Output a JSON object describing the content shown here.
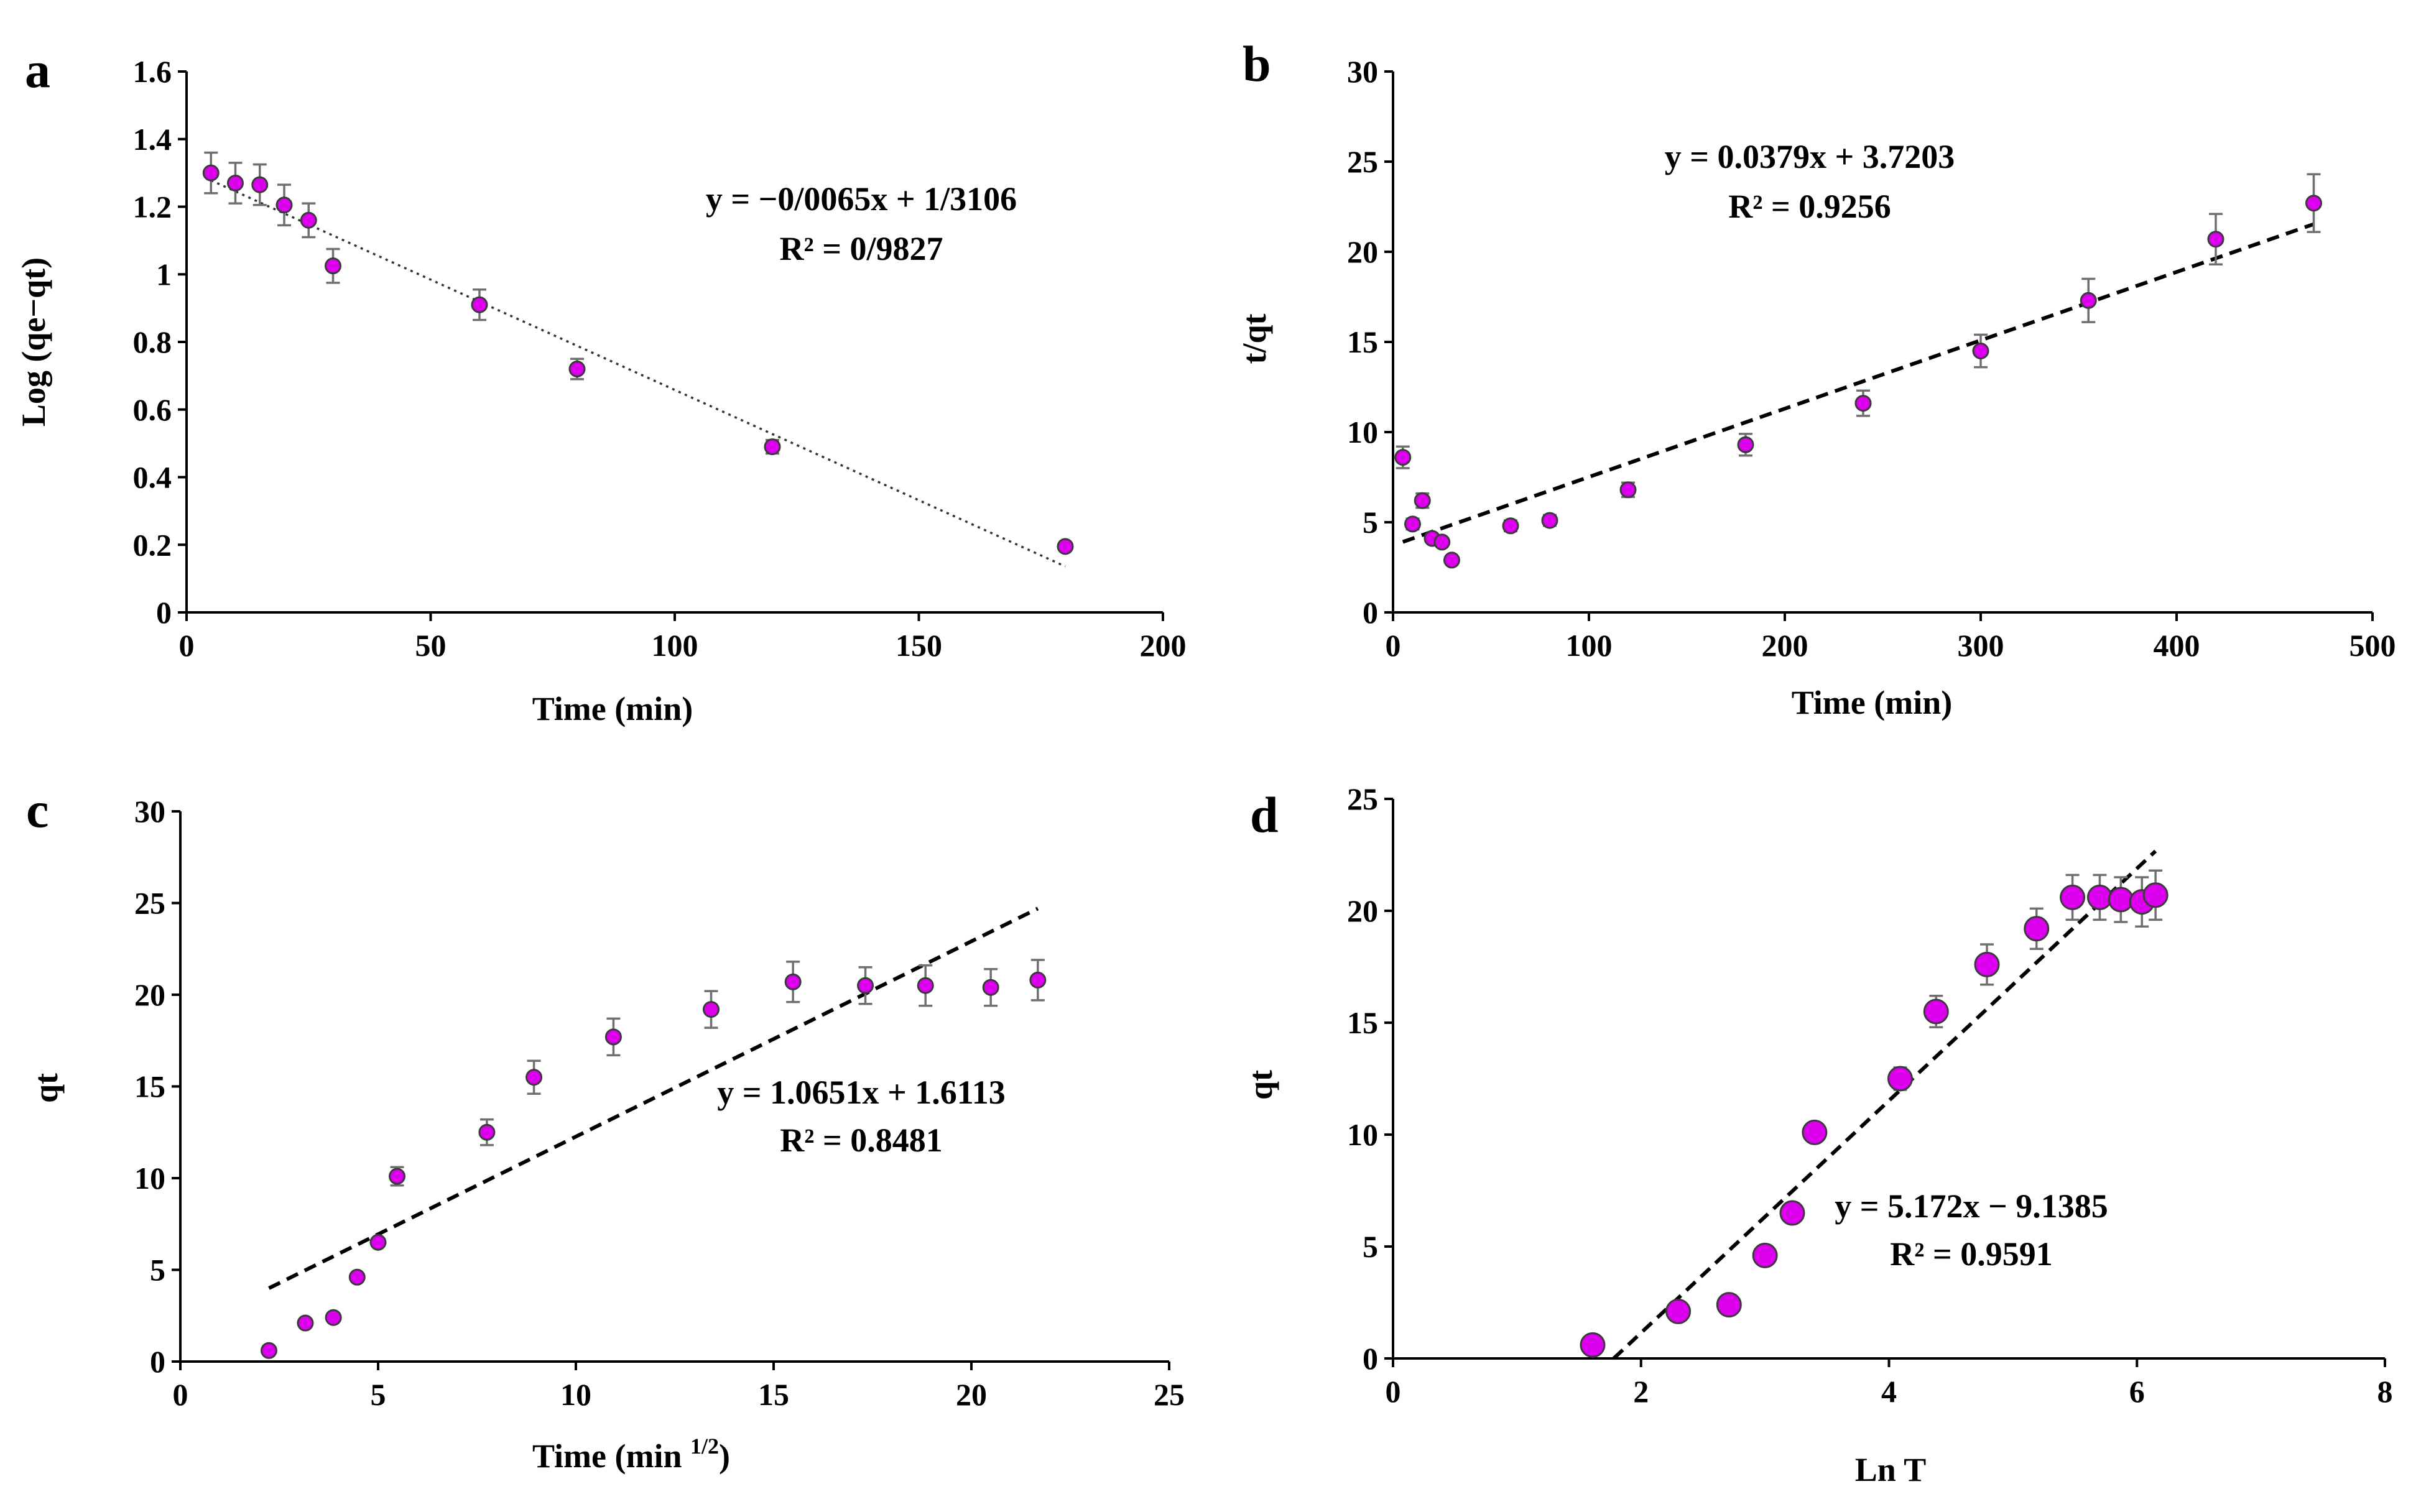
{
  "chart_data": [
    {
      "id": "a",
      "panel_label": "a",
      "type": "scatter",
      "xlabel": "Time (min)",
      "ylabel": "Log (qe−qt)",
      "xlim": [
        0,
        200
      ],
      "ylim": [
        0,
        1.6
      ],
      "xticks": [
        0,
        50,
        100,
        150,
        200
      ],
      "yticks": [
        0,
        0.2,
        0.4,
        0.6,
        0.8,
        1,
        1.2,
        1.4,
        1.6
      ],
      "xtick_labels": [
        "0",
        "50",
        "100",
        "150",
        "200"
      ],
      "ytick_labels": [
        "0",
        "0.2",
        "0.4",
        "0.6",
        "0.8",
        "1",
        "1.2",
        "1.4",
        "1.6"
      ],
      "series": [
        {
          "name": "data",
          "x": [
            5,
            10,
            15,
            20,
            25,
            30,
            60,
            80,
            120,
            180
          ],
          "y": [
            1.3,
            1.27,
            1.265,
            1.205,
            1.16,
            1.025,
            0.91,
            0.72,
            0.49,
            0.195
          ],
          "err": [
            0.06,
            0.06,
            0.06,
            0.06,
            0.05,
            0.05,
            0.045,
            0.03,
            0.02,
            0.01
          ]
        }
      ],
      "trendline": {
        "x1": 5,
        "y1": 1.278,
        "x2": 180,
        "y2": 0.136,
        "style": "dotted"
      },
      "equation": "y = −0/0065x + 1/3106",
      "r_squared": "R² = 0/9827",
      "point_size": "small"
    },
    {
      "id": "b",
      "panel_label": "b",
      "type": "scatter",
      "xlabel": "Time (min)",
      "ylabel": "t/qt",
      "xlim": [
        0,
        500
      ],
      "ylim": [
        0,
        30
      ],
      "xticks": [
        0,
        100,
        200,
        300,
        400,
        500
      ],
      "yticks": [
        0,
        5,
        10,
        15,
        20,
        25,
        30
      ],
      "xtick_labels": [
        "0",
        "100",
        "200",
        "300",
        "400",
        "500"
      ],
      "ytick_labels": [
        "0",
        "5",
        "10",
        "15",
        "20",
        "25",
        "30"
      ],
      "series": [
        {
          "name": "data",
          "x": [
            5,
            10,
            15,
            20,
            25,
            30,
            60,
            80,
            120,
            180,
            240,
            300,
            355,
            420,
            470
          ],
          "y": [
            8.6,
            4.9,
            6.2,
            4.1,
            3.9,
            2.9,
            4.8,
            5.1,
            6.8,
            9.3,
            11.6,
            14.5,
            17.3,
            20.7,
            22.7
          ],
          "err": [
            0.6,
            0.3,
            0.4,
            0.2,
            0.2,
            0.1,
            0.3,
            0.3,
            0.4,
            0.6,
            0.7,
            0.9,
            1.2,
            1.4,
            1.6
          ]
        }
      ],
      "trendline": {
        "x1": 5,
        "y1": 3.9098,
        "x2": 470,
        "y2": 21.5333,
        "style": "dashed"
      },
      "equation": "y = 0.0379x + 3.7203",
      "r_squared": "R² = 0.9256",
      "point_size": "small"
    },
    {
      "id": "c",
      "panel_label": "c",
      "type": "scatter",
      "xlabel": "Time (min",
      "xlabel_sup": "1/2",
      "xlabel_end": ")",
      "ylabel": "qt",
      "xlim": [
        0,
        25
      ],
      "ylim": [
        0,
        30
      ],
      "xticks": [
        0,
        5,
        10,
        15,
        20,
        25
      ],
      "yticks": [
        0,
        5,
        10,
        15,
        20,
        25,
        30
      ],
      "xtick_labels": [
        "0",
        "5",
        "10",
        "15",
        "20",
        "25"
      ],
      "ytick_labels": [
        "0",
        "5",
        "10",
        "15",
        "20",
        "25",
        "30"
      ],
      "series": [
        {
          "name": "data",
          "x": [
            2.24,
            3.16,
            3.87,
            4.47,
            5.0,
            5.48,
            7.75,
            8.94,
            10.95,
            13.42,
            15.49,
            17.32,
            18.84,
            20.49,
            21.68
          ],
          "y": [
            0.6,
            2.1,
            2.4,
            4.6,
            6.5,
            10.1,
            12.5,
            15.5,
            17.7,
            19.2,
            20.7,
            20.5,
            20.5,
            20.4,
            20.8
          ],
          "err": [
            0,
            0,
            0,
            0,
            0,
            0.5,
            0.7,
            0.9,
            1.0,
            1.0,
            1.1,
            1.0,
            1.1,
            1.0,
            1.1
          ]
        }
      ],
      "trendline": {
        "x1": 2.24,
        "y1": 4.0,
        "x2": 21.68,
        "y2": 24.7,
        "style": "dashed"
      },
      "equation": "y = 1.0651x + 1.6113",
      "r_squared": "R² = 0.8481",
      "point_size": "small"
    },
    {
      "id": "d",
      "panel_label": "d",
      "type": "scatter",
      "xlabel": "Ln T",
      "ylabel": "qt",
      "xlim": [
        0,
        8
      ],
      "ylim": [
        0,
        25
      ],
      "xticks": [
        0,
        2,
        4,
        6,
        8
      ],
      "yticks": [
        0,
        5,
        10,
        15,
        20,
        25
      ],
      "xtick_labels": [
        "0",
        "2",
        "4",
        "6",
        "8"
      ],
      "ytick_labels": [
        "0",
        "5",
        "10",
        "15",
        "20",
        "25"
      ],
      "series": [
        {
          "name": "data",
          "x": [
            1.61,
            2.3,
            2.71,
            3.0,
            3.22,
            3.4,
            4.09,
            4.38,
            4.79,
            5.19,
            5.48,
            5.7,
            5.87,
            6.04,
            6.15
          ],
          "y": [
            0.6,
            2.1,
            2.4,
            4.6,
            6.5,
            10.1,
            12.5,
            15.5,
            17.6,
            19.2,
            20.6,
            20.6,
            20.5,
            20.4,
            20.7
          ],
          "err": [
            0,
            0,
            0,
            0,
            0,
            0,
            0.5,
            0.7,
            0.9,
            0.9,
            1.0,
            1.0,
            1.0,
            1.1,
            1.1
          ]
        }
      ],
      "trendline": {
        "x1": 1.78,
        "y1": 0.0,
        "x2": 6.15,
        "y2": 22.67,
        "style": "dashed"
      },
      "equation": "y = 5.172x − 9.1385",
      "r_squared": "R² = 0.9591",
      "point_size": "large"
    }
  ]
}
